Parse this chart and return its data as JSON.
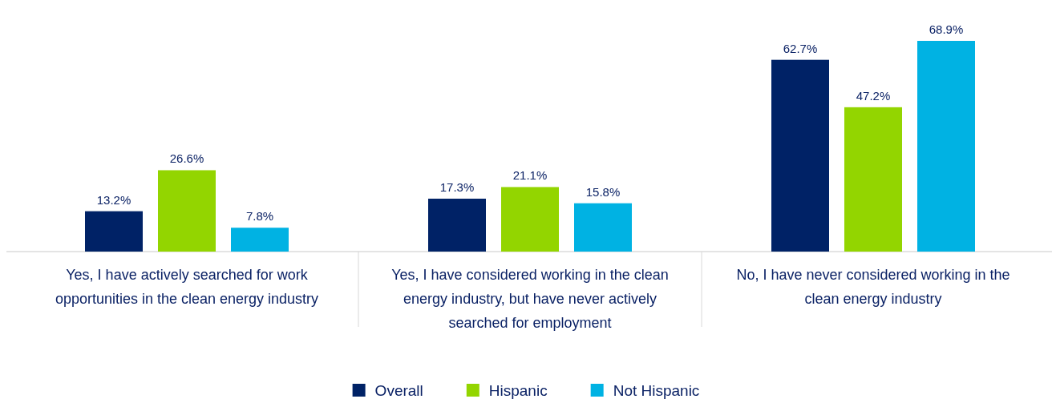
{
  "chart_data": {
    "type": "bar",
    "categories": [
      "Yes, I have actively searched for work opportunities in the clean energy industry",
      "Yes, I have considered working in the clean energy industry, but have never actively searched for employment",
      "No, I have never considered working in the clean energy industry"
    ],
    "series": [
      {
        "name": "Overall",
        "color": "#002266",
        "values": [
          13.2,
          17.3,
          62.7
        ],
        "value_labels": [
          "13.2%",
          "17.3%",
          "62.7%"
        ]
      },
      {
        "name": "Hispanic",
        "color": "#93d500",
        "values": [
          26.6,
          21.1,
          47.2
        ],
        "value_labels": [
          "26.6%",
          "21.1%",
          "47.2%"
        ]
      },
      {
        "name": "Not Hispanic",
        "color": "#00b2e3",
        "values": [
          7.8,
          15.8,
          68.9
        ],
        "value_labels": [
          "7.8%",
          "15.8%",
          "68.9%"
        ]
      }
    ],
    "legend": "bottom"
  }
}
